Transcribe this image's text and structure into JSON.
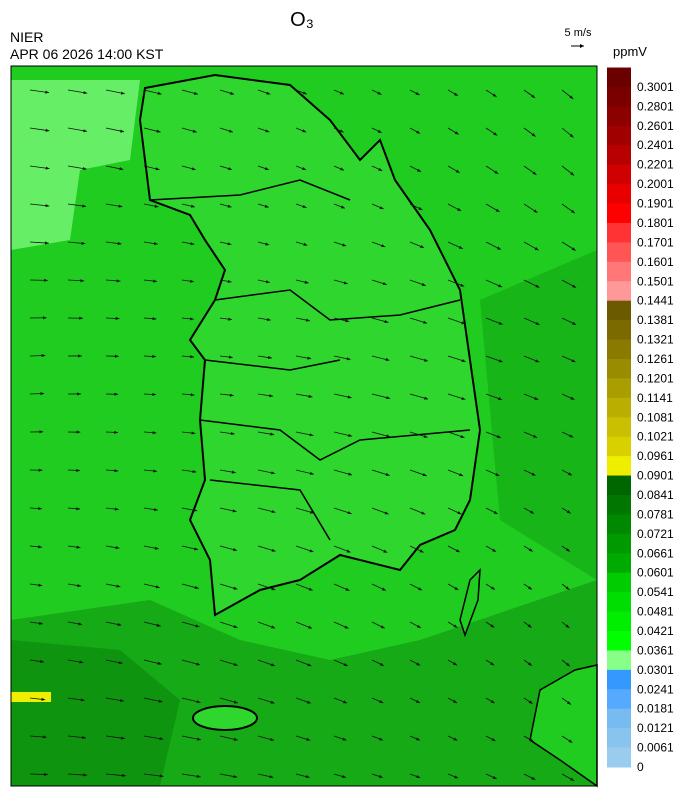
{
  "header": {
    "title": "O₃",
    "source": "NIER",
    "datetime": "APR 06 2026 14:00 KST",
    "wind_scale": "5 m/s"
  },
  "colorbar": {
    "unit": "ppmV",
    "labels": [
      "0.3001",
      "0.2801",
      "0.2601",
      "0.2401",
      "0.2201",
      "0.2001",
      "0.1901",
      "0.1801",
      "0.1701",
      "0.1601",
      "0.1501",
      "0.1441",
      "0.1381",
      "0.1321",
      "0.1261",
      "0.1201",
      "0.1141",
      "0.1081",
      "0.1021",
      "0.0961",
      "0.0901",
      "0.0841",
      "0.0781",
      "0.0721",
      "0.0661",
      "0.0601",
      "0.0541",
      "0.0481",
      "0.0421",
      "0.0361",
      "0.0301",
      "0.0241",
      "0.0181",
      "0.0121",
      "0.0061",
      "0"
    ],
    "colors": [
      "#6b0000",
      "#7a0000",
      "#8c0000",
      "#a00000",
      "#b80000",
      "#d00000",
      "#e80000",
      "#ff0000",
      "#ff3333",
      "#ff5555",
      "#ff7777",
      "#ff9999",
      "#6b5a00",
      "#7a6a00",
      "#8a7b00",
      "#9a8c00",
      "#aa9d00",
      "#baae00",
      "#cabf00",
      "#dad000",
      "#eeee00",
      "#006600",
      "#007700",
      "#008800",
      "#009900",
      "#00aa00",
      "#00cc00",
      "#00dd00",
      "#00ee00",
      "#00ff00",
      "#88ff88",
      "#3399ff",
      "#55aaff",
      "#77bbf0",
      "#88c4ee",
      "#99ccee"
    ]
  }
}
